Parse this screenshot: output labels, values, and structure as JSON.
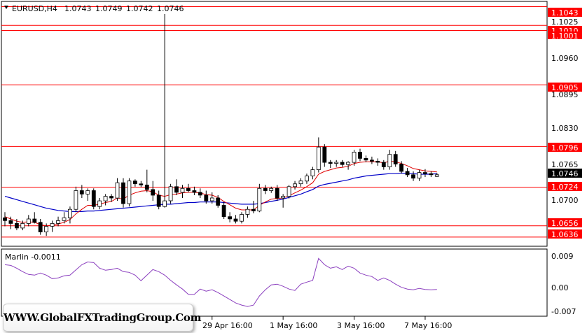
{
  "chart_data": {
    "type": "candlestick",
    "header": {
      "symbol": "EURUSD,H4",
      "open": "1.0743",
      "high": "1.0749",
      "low": "1.0742",
      "close": "1.0746"
    },
    "price_axis": {
      "ticks": [
        "1.1025",
        "1.0960",
        "1.0895",
        "1.0830",
        "1.0765",
        "1.0700"
      ],
      "range": [
        1.0621,
        1.1051
      ]
    },
    "price_labels": {
      "l1043": "1.1043",
      "l1010": "1.1010",
      "l1001": "1.1001",
      "l0905": "1.0905",
      "l0796": "1.0796",
      "l0724": "1.0724",
      "l0656": "1.0656",
      "l0636": "1.0636",
      "current": "1.0746"
    },
    "horizontal_levels": [
      1.1043,
      1.101,
      1.1001,
      1.0905,
      1.0796,
      1.0724,
      1.0656,
      1.0636
    ],
    "current_price": 1.0746,
    "candles": [
      [
        1.067,
        1.068,
        1.0655,
        1.0665
      ],
      [
        1.0665,
        1.0672,
        1.065,
        1.066
      ],
      [
        1.066,
        1.0668,
        1.0648,
        1.0652
      ],
      [
        1.0652,
        1.0665,
        1.0648,
        1.066
      ],
      [
        1.066,
        1.0675,
        1.0655,
        1.0668
      ],
      [
        1.0668,
        1.068,
        1.066,
        1.0662
      ],
      [
        1.0662,
        1.0668,
        1.064,
        1.0645
      ],
      [
        1.0645,
        1.066,
        1.0638,
        1.0655
      ],
      [
        1.0655,
        1.0665,
        1.0645,
        1.066
      ],
      [
        1.066,
        1.0672,
        1.0655,
        1.0665
      ],
      [
        1.0665,
        1.068,
        1.066,
        1.067
      ],
      [
        1.067,
        1.069,
        1.066,
        1.0685
      ],
      [
        1.0685,
        1.0725,
        1.068,
        1.0718
      ],
      [
        1.0718,
        1.0728,
        1.0705,
        1.0712
      ],
      [
        1.0712,
        1.0722,
        1.07,
        1.0718
      ],
      [
        1.0718,
        1.0722,
        1.0685,
        1.069
      ],
      [
        1.069,
        1.0705,
        1.0685,
        1.07
      ],
      [
        1.07,
        1.0712,
        1.0692,
        1.0708
      ],
      [
        1.0708,
        1.0712,
        1.0698,
        1.0705
      ],
      [
        1.0705,
        1.074,
        1.07,
        1.0732
      ],
      [
        1.0732,
        1.074,
        1.0688,
        1.0695
      ],
      [
        1.0695,
        1.074,
        1.069,
        1.0735
      ],
      [
        1.0735,
        1.0738,
        1.0725,
        1.073
      ],
      [
        1.073,
        1.0735,
        1.0724,
        1.0728
      ],
      [
        1.0728,
        1.0755,
        1.0715,
        1.072
      ],
      [
        1.072,
        1.0735,
        1.07,
        1.071
      ],
      [
        1.071,
        1.0718,
        1.0685,
        1.069
      ],
      [
        1.069,
        1.103,
        1.0688,
        1.07
      ],
      [
        1.07,
        1.073,
        1.0695,
        1.0725
      ],
      [
        1.0725,
        1.0738,
        1.071,
        1.0715
      ],
      [
        1.0715,
        1.0728,
        1.0705,
        1.0722
      ],
      [
        1.0722,
        1.073,
        1.0715,
        1.0718
      ],
      [
        1.0718,
        1.0725,
        1.071,
        1.0715
      ],
      [
        1.0715,
        1.0722,
        1.0705,
        1.071
      ],
      [
        1.071,
        1.0718,
        1.0695,
        1.07
      ],
      [
        1.07,
        1.0715,
        1.0695,
        1.0705
      ],
      [
        1.0705,
        1.071,
        1.0688,
        1.0692
      ],
      [
        1.0692,
        1.0698,
        1.0668,
        1.0672
      ],
      [
        1.0672,
        1.068,
        1.0662,
        1.0668
      ],
      [
        1.0668,
        1.0675,
        1.066,
        1.0664
      ],
      [
        1.0664,
        1.068,
        1.066,
        1.0676
      ],
      [
        1.0676,
        1.069,
        1.067,
        1.0685
      ],
      [
        1.0685,
        1.07,
        1.0678,
        1.0682
      ],
      [
        1.0682,
        1.073,
        1.068,
        1.0722
      ],
      [
        1.0722,
        1.0728,
        1.0712,
        1.0718
      ],
      [
        1.0718,
        1.0725,
        1.0714,
        1.0722
      ],
      [
        1.0722,
        1.0728,
        1.07,
        1.0705
      ],
      [
        1.0705,
        1.0712,
        1.0688,
        1.0708
      ],
      [
        1.0708,
        1.0728,
        1.0704,
        1.0725
      ],
      [
        1.0725,
        1.0735,
        1.072,
        1.073
      ],
      [
        1.073,
        1.074,
        1.0725,
        1.0735
      ],
      [
        1.0735,
        1.0748,
        1.073,
        1.0744
      ],
      [
        1.0744,
        1.076,
        1.0738,
        1.0755
      ],
      [
        1.0755,
        1.0812,
        1.075,
        1.0795
      ],
      [
        1.0795,
        1.08,
        1.076,
        1.0768
      ],
      [
        1.0768,
        1.0772,
        1.0758,
        1.0766
      ],
      [
        1.0766,
        1.0772,
        1.076,
        1.0768
      ],
      [
        1.0768,
        1.0772,
        1.076,
        1.0764
      ],
      [
        1.0764,
        1.077,
        1.0755,
        1.0768
      ],
      [
        1.0768,
        1.079,
        1.0762,
        1.0786
      ],
      [
        1.0786,
        1.0792,
        1.077,
        1.0775
      ],
      [
        1.0775,
        1.078,
        1.0768,
        1.0772
      ],
      [
        1.0772,
        1.0778,
        1.0765,
        1.077
      ],
      [
        1.077,
        1.0775,
        1.0762,
        1.0768
      ],
      [
        1.0768,
        1.0772,
        1.0755,
        1.076
      ],
      [
        1.076,
        1.079,
        1.0755,
        1.0782
      ],
      [
        1.0782,
        1.0788,
        1.076,
        1.0765
      ],
      [
        1.0765,
        1.077,
        1.0748,
        1.0752
      ],
      [
        1.0752,
        1.0758,
        1.0742,
        1.0746
      ],
      [
        1.0746,
        1.0752,
        1.0735,
        1.074
      ],
      [
        1.074,
        1.0755,
        1.0735,
        1.075
      ],
      [
        1.075,
        1.0756,
        1.0742,
        1.0748
      ],
      [
        1.0748,
        1.0752,
        1.0742,
        1.0746
      ],
      [
        1.0743,
        1.0749,
        1.0742,
        1.0746
      ]
    ],
    "ma_red": [
      1.0672,
      1.0668,
      1.0664,
      1.0662,
      1.0663,
      1.0662,
      1.0658,
      1.0656,
      1.0657,
      1.0659,
      1.0662,
      1.0667,
      1.0677,
      1.0685,
      1.0692,
      1.0692,
      1.0694,
      1.0697,
      1.0699,
      1.0705,
      1.0703,
      1.071,
      1.0714,
      1.0717,
      1.0718,
      1.0716,
      1.071,
      1.0708,
      1.0711,
      1.0712,
      1.0714,
      1.0715,
      1.0715,
      1.0714,
      1.0711,
      1.071,
      1.0706,
      1.0699,
      1.0693,
      1.0687,
      1.0684,
      1.0684,
      1.0684,
      1.0692,
      1.0698,
      1.0703,
      1.0704,
      1.0705,
      1.0709,
      1.0714,
      1.0719,
      1.0725,
      1.0732,
      1.0747,
      1.0752,
      1.0755,
      1.0758,
      1.0759,
      1.0761,
      1.0766,
      1.0768,
      1.0769,
      1.0769,
      1.0769,
      1.0767,
      1.077,
      1.0769,
      1.0766,
      1.0762,
      1.0757,
      1.0755,
      1.0753,
      1.0752,
      1.0751
    ],
    "ma_blue": [
      1.0708,
      1.0705,
      1.0702,
      1.0699,
      1.0696,
      1.0693,
      1.069,
      1.0687,
      1.0685,
      1.0683,
      1.0682,
      1.0681,
      1.0681,
      1.0681,
      1.0682,
      1.0682,
      1.0683,
      1.0684,
      1.0685,
      1.0686,
      1.0687,
      1.0688,
      1.0689,
      1.069,
      1.0691,
      1.0692,
      1.0693,
      1.0694,
      1.0694,
      1.0695,
      1.0696,
      1.0697,
      1.0697,
      1.0698,
      1.0698,
      1.0698,
      1.0698,
      1.0697,
      1.0696,
      1.0695,
      1.0694,
      1.0694,
      1.0694,
      1.0695,
      1.0697,
      1.0699,
      1.0701,
      1.0703,
      1.0706,
      1.0709,
      1.0712,
      1.0716,
      1.072,
      1.0726,
      1.0729,
      1.0731,
      1.0733,
      1.0735,
      1.0737,
      1.074,
      1.0742,
      1.0744,
      1.0745,
      1.0746,
      1.0747,
      1.0748,
      1.0748,
      1.0749,
      1.0748,
      1.0748,
      1.0747,
      1.0747,
      1.0747,
      1.0748
    ],
    "indicator": {
      "label": "Marlin -0.0011",
      "ticks": [
        "0.009",
        "0.00",
        "-0.007"
      ],
      "range": [
        -0.0086,
        0.0103
      ],
      "values": [
        0.006,
        0.0058,
        0.005,
        0.004,
        0.0032,
        0.003,
        0.0036,
        0.003,
        0.002,
        0.0022,
        0.0028,
        0.003,
        0.0045,
        0.006,
        0.0068,
        0.0066,
        0.005,
        0.0044,
        0.0046,
        0.005,
        0.004,
        0.0038,
        0.003,
        0.0014,
        0.003,
        0.0046,
        0.004,
        0.003,
        0.0015,
        0.0002,
        -0.001,
        -0.0025,
        -0.0025,
        -0.001,
        -0.0016,
        -0.0012,
        -0.002,
        -0.003,
        -0.004,
        -0.005,
        -0.0056,
        -0.006,
        -0.0056,
        -0.003,
        -0.0012,
        0.0002,
        0.0004,
        -0.0002,
        -0.001,
        -0.0014,
        0.0004,
        0.001,
        0.0015,
        0.0078,
        0.006,
        0.005,
        0.0054,
        0.0046,
        0.0056,
        0.005,
        0.0036,
        0.003,
        0.0026,
        0.0015,
        0.0022,
        0.0015,
        0.0004,
        -0.0005,
        -0.001,
        -0.0012,
        -0.0008,
        -0.0011,
        -0.0012,
        -0.0011
      ]
    },
    "time_labels": [
      {
        "text": "29 Apr 16:00",
        "index": 35
      },
      {
        "text": "1 May 16:00",
        "index": 47
      },
      {
        "text": "3 May 16:00",
        "index": 59
      },
      {
        "text": "7 May 16:00",
        "index": 71
      }
    ],
    "colors": {
      "level": "#ff0000",
      "ma_fast": "#e00000",
      "ma_slow": "#0000c8",
      "indicator": "#8b3fbf",
      "candle": "#000000",
      "price_tag": "#ff0000"
    }
  },
  "watermark": {
    "text": "WWW.GlobalFXTradingGroup.Com"
  }
}
